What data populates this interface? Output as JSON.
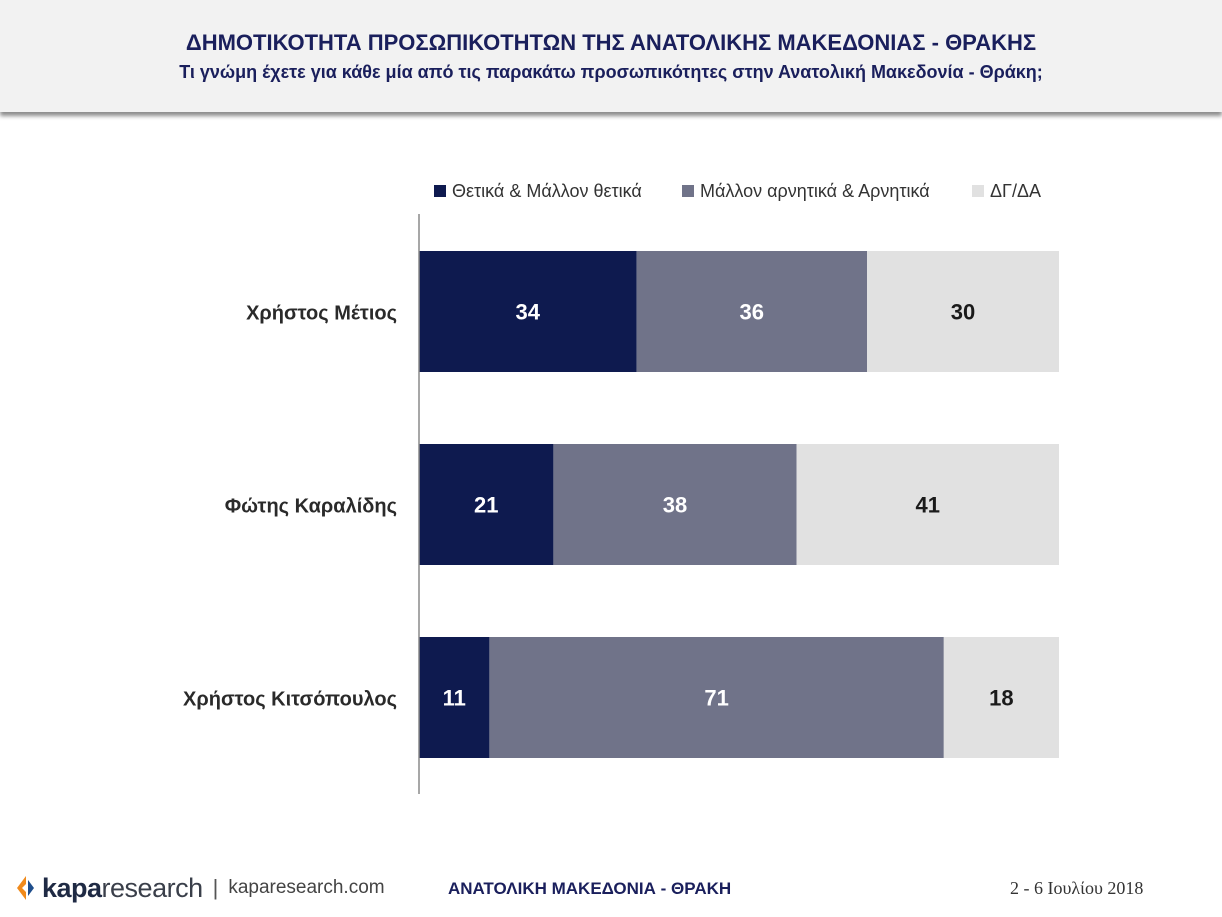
{
  "header": {
    "title": "ΔΗΜΟΤΙΚΟΤΗΤΑ ΠΡΟΣΩΠΙΚΟΤΗΤΩΝ ΤΗΣ ΑΝΑΤΟΛΙΚΗΣ ΜΑΚΕΔΟΝΙΑΣ - ΘΡΑΚΗΣ",
    "subtitle": "Τι γνώμη έχετε για κάθε μία από τις παρακάτω προσωπικότητες στην Ανατολική Μακεδονία - Θράκη;"
  },
  "chart_data": {
    "type": "bar",
    "orientation": "horizontal",
    "stacked": true,
    "categories": [
      "Χρήστος Μέτιος",
      "Φώτης Καραλίδης",
      "Χρήστος Κιτσόπουλος"
    ],
    "series": [
      {
        "name": "Θετικά & Μάλλον θετικά",
        "values": [
          34,
          21,
          11
        ],
        "color": "#0e1a4f",
        "label_color": "#ffffff"
      },
      {
        "name": "Μάλλον αρνητικά & Αρνητικά",
        "values": [
          36,
          38,
          71
        ],
        "color": "#707389",
        "label_color": "#ffffff"
      },
      {
        "name": "ΔΓ/ΔΑ",
        "values": [
          30,
          41,
          18
        ],
        "color": "#e1e1e1",
        "label_color": "#1a1a1a"
      }
    ],
    "xlim": [
      0,
      100
    ],
    "legend_position": "top",
    "grid": false,
    "data_labels": true
  },
  "footer": {
    "brand_bold": "kapa",
    "brand_rest": "research",
    "separator": "|",
    "url": "kaparesearch.com",
    "region": "ΑΝΑΤΟΛΙΚΗ ΜΑΚΕΔΟΝΙΑ - ΘΡΑΚΗ",
    "date": "2 - 6 Ιουλίου 2018"
  },
  "colors": {
    "title": "#1a1f5c",
    "logo_orange": "#f08a1c",
    "logo_blue": "#1f4e8c"
  }
}
